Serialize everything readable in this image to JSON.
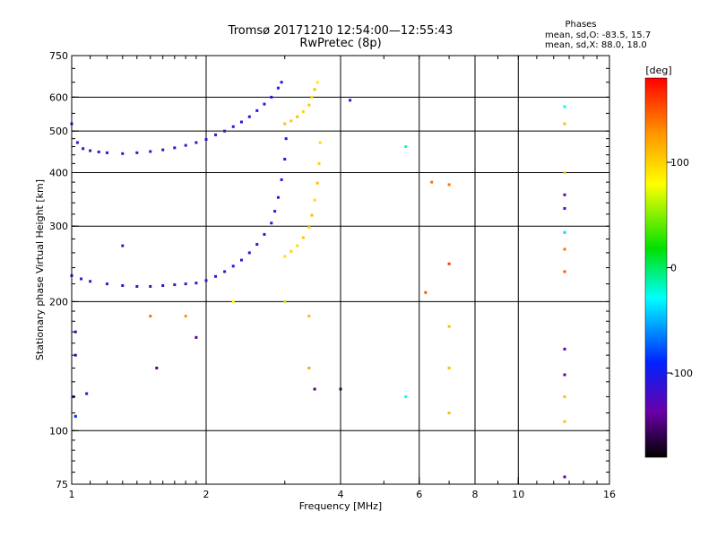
{
  "header": {
    "title_line1": "Tromsø 20171210 12:54:00—12:55:43",
    "title_line2": "RwPretec (8p)"
  },
  "stats": {
    "heading": "Phases",
    "line1": "mean, sd,O: -83.5, 15.7",
    "line2": "mean, sd,X:  88.0, 18.0"
  },
  "colorbar": {
    "label": "[deg]",
    "range": [
      -180,
      180
    ],
    "ticks": [
      {
        "value": 100,
        "label": "100"
      },
      {
        "value": 0,
        "label": "0"
      },
      {
        "value": -100,
        "label": "-100"
      }
    ]
  },
  "chart_data": {
    "type": "scatter",
    "title": "Tromsø 20171210 12:54:00—12:55:43",
    "subtitle": "RwPretec (8p)",
    "xlabel": "Frequency [MHz]",
    "ylabel": "Stationary phase Virtual Height [km]",
    "xscale": "log",
    "yscale": "log",
    "xlim": [
      1,
      16
    ],
    "ylim": [
      75,
      750
    ],
    "xticks": [
      {
        "value": 1,
        "label": "1"
      },
      {
        "value": 2,
        "label": "2"
      },
      {
        "value": 4,
        "label": "4"
      },
      {
        "value": 6,
        "label": "6"
      },
      {
        "value": 8,
        "label": "8"
      },
      {
        "value": 10,
        "label": "10"
      },
      {
        "value": 16,
        "label": "16"
      }
    ],
    "yticks": [
      {
        "value": 75,
        "label": "75"
      },
      {
        "value": 100,
        "label": "100"
      },
      {
        "value": 200,
        "label": "200"
      },
      {
        "value": 300,
        "label": "300"
      },
      {
        "value": 400,
        "label": "400"
      },
      {
        "value": 500,
        "label": "500"
      },
      {
        "value": 600,
        "label": "600"
      },
      {
        "value": 750,
        "label": "750"
      }
    ],
    "grid_x": [
      2,
      4,
      6,
      8,
      10
    ],
    "grid_y": [
      100,
      200,
      300,
      400,
      500,
      600
    ],
    "minor_x": [
      5,
      7,
      9
    ],
    "color_by": "phase [deg]",
    "points": [
      [
        1.0,
        520,
        -110
      ],
      [
        1.03,
        470,
        -120
      ],
      [
        1.06,
        455,
        -115
      ],
      [
        1.1,
        450,
        -118
      ],
      [
        1.15,
        447,
        -120
      ],
      [
        1.2,
        445,
        -118
      ],
      [
        1.3,
        443,
        -120
      ],
      [
        1.4,
        445,
        -118
      ],
      [
        1.5,
        448,
        -120
      ],
      [
        1.6,
        452,
        -118
      ],
      [
        1.7,
        457,
        -115
      ],
      [
        1.8,
        463,
        -118
      ],
      [
        1.9,
        470,
        -115
      ],
      [
        2.0,
        478,
        -118
      ],
      [
        2.1,
        490,
        -112
      ],
      [
        2.2,
        500,
        -115
      ],
      [
        2.3,
        512,
        -110
      ],
      [
        2.4,
        525,
        -112
      ],
      [
        2.5,
        540,
        -108
      ],
      [
        2.6,
        558,
        -110
      ],
      [
        2.7,
        578,
        -105
      ],
      [
        2.8,
        600,
        -108
      ],
      [
        2.9,
        630,
        -100
      ],
      [
        2.95,
        650,
        -105
      ],
      [
        1.0,
        230,
        -115
      ],
      [
        1.05,
        226,
        -118
      ],
      [
        1.1,
        223,
        -115
      ],
      [
        1.2,
        220,
        -120
      ],
      [
        1.3,
        218,
        -118
      ],
      [
        1.4,
        217,
        -115
      ],
      [
        1.5,
        217,
        -120
      ],
      [
        1.6,
        218,
        -118
      ],
      [
        1.7,
        219,
        -115
      ],
      [
        1.8,
        220,
        -118
      ],
      [
        1.9,
        221,
        -115
      ],
      [
        2.0,
        224,
        -118
      ],
      [
        2.1,
        229,
        -112
      ],
      [
        2.2,
        235,
        -115
      ],
      [
        2.3,
        242,
        -110
      ],
      [
        2.4,
        250,
        -112
      ],
      [
        2.5,
        260,
        -108
      ],
      [
        2.6,
        272,
        -110
      ],
      [
        2.7,
        287,
        -105
      ],
      [
        2.8,
        305,
        -108
      ],
      [
        2.85,
        325,
        -105
      ],
      [
        2.9,
        350,
        -100
      ],
      [
        2.95,
        385,
        -105
      ],
      [
        3.0,
        430,
        -100
      ],
      [
        3.02,
        480,
        -95
      ],
      [
        3.0,
        520,
        110
      ],
      [
        3.1,
        528,
        105
      ],
      [
        3.2,
        540,
        110
      ],
      [
        3.3,
        555,
        100
      ],
      [
        3.4,
        575,
        105
      ],
      [
        3.45,
        600,
        95
      ],
      [
        3.5,
        625,
        110
      ],
      [
        3.55,
        650,
        90
      ],
      [
        3.0,
        255,
        95
      ],
      [
        3.1,
        262,
        100
      ],
      [
        3.2,
        270,
        95
      ],
      [
        3.3,
        282,
        105
      ],
      [
        3.4,
        298,
        100
      ],
      [
        3.45,
        318,
        110
      ],
      [
        3.5,
        345,
        95
      ],
      [
        3.55,
        378,
        110
      ],
      [
        3.58,
        420,
        100
      ],
      [
        3.6,
        470,
        95
      ],
      [
        1.02,
        170,
        -105
      ],
      [
        1.02,
        150,
        -110
      ],
      [
        1.01,
        120,
        -95
      ],
      [
        1.02,
        108,
        -90
      ],
      [
        1.08,
        122,
        -110
      ],
      [
        1.3,
        270,
        -125
      ],
      [
        1.5,
        185,
        140
      ],
      [
        1.55,
        140,
        -150
      ],
      [
        1.8,
        185,
        130
      ],
      [
        1.9,
        165,
        -145
      ],
      [
        2.3,
        200,
        80
      ],
      [
        3.0,
        200,
        60
      ],
      [
        3.4,
        185,
        110
      ],
      [
        3.4,
        140,
        120
      ],
      [
        3.5,
        125,
        -150
      ],
      [
        4.0,
        125,
        -160
      ],
      [
        4.2,
        590,
        -120
      ],
      [
        5.6,
        120,
        -30
      ],
      [
        5.6,
        460,
        -20
      ],
      [
        6.4,
        380,
        140
      ],
      [
        6.2,
        210,
        150
      ],
      [
        7.0,
        375,
        140
      ],
      [
        7.0,
        245,
        160
      ],
      [
        7.0,
        175,
        110
      ],
      [
        7.0,
        140,
        110
      ],
      [
        7.0,
        110,
        110
      ],
      [
        12.7,
        570,
        -30
      ],
      [
        12.7,
        520,
        110
      ],
      [
        12.7,
        400,
        100
      ],
      [
        12.7,
        355,
        -140
      ],
      [
        12.7,
        330,
        -130
      ],
      [
        12.7,
        290,
        -40
      ],
      [
        12.7,
        265,
        140
      ],
      [
        12.7,
        235,
        150
      ],
      [
        12.7,
        155,
        -140
      ],
      [
        12.7,
        135,
        -140
      ],
      [
        12.7,
        120,
        110
      ],
      [
        12.7,
        105,
        110
      ],
      [
        12.7,
        78,
        -140
      ]
    ]
  }
}
